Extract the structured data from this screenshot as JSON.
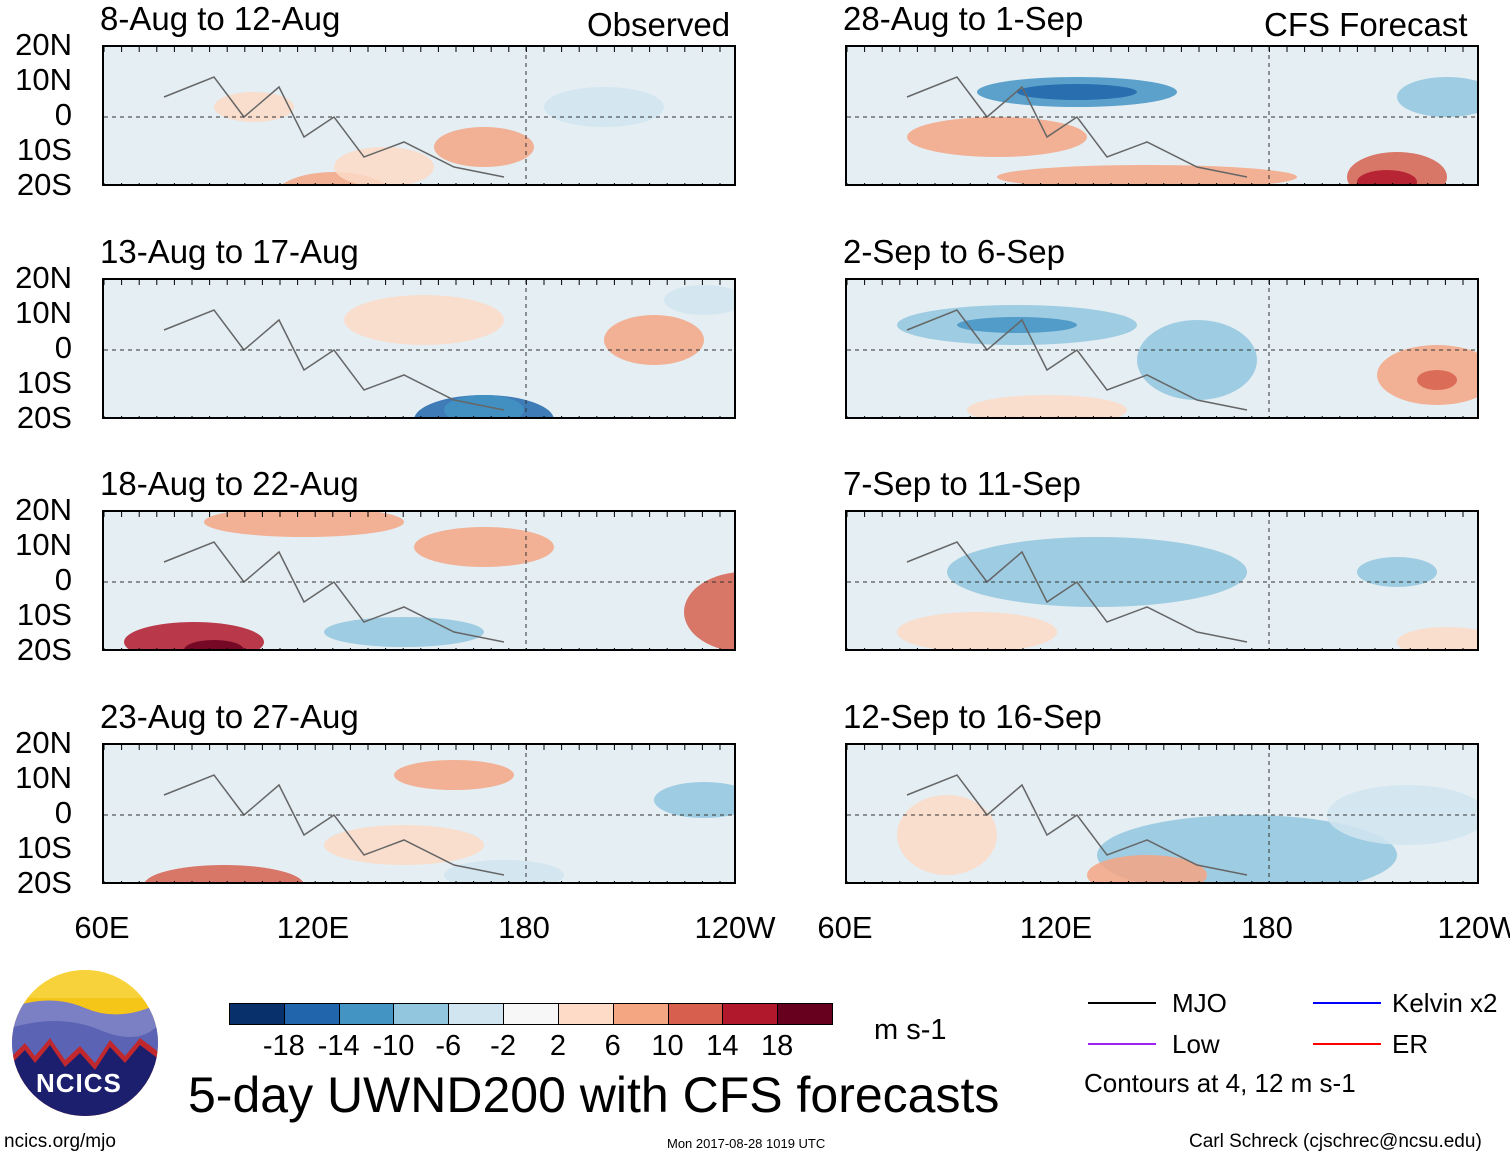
{
  "columns": {
    "left_tag": "Observed",
    "right_tag": "CFS Forecast"
  },
  "panels": [
    {
      "title": "8-Aug to 12-Aug"
    },
    {
      "title": "13-Aug to 17-Aug"
    },
    {
      "title": "18-Aug to 22-Aug"
    },
    {
      "title": "23-Aug to 27-Aug"
    },
    {
      "title": "28-Aug to 1-Sep"
    },
    {
      "title": "2-Sep to 6-Sep"
    },
    {
      "title": "7-Sep to 11-Sep"
    },
    {
      "title": "12-Sep to 16-Sep"
    }
  ],
  "y_ticks": [
    "20N",
    "10N",
    "0",
    "10S",
    "20S"
  ],
  "x_ticks": [
    "60E",
    "120E",
    "180",
    "120W"
  ],
  "colorbar": {
    "colors": [
      "#08306b",
      "#2166ac",
      "#4393c3",
      "#92c5de",
      "#d1e5f0",
      "#f7f7f7",
      "#fddbc7",
      "#f4a582",
      "#d6604d",
      "#b2182b",
      "#67001f"
    ],
    "labels": [
      "-18",
      "-14",
      "-10",
      "-6",
      "-2",
      "2",
      "6",
      "10",
      "14",
      "18"
    ],
    "units": "m s-1"
  },
  "legend": {
    "items": [
      {
        "label": "MJO",
        "color": "#000000"
      },
      {
        "label": "Kelvin x2",
        "color": "#0000ff"
      },
      {
        "label": "Low",
        "color": "#a020f0"
      },
      {
        "label": "ER",
        "color": "#ff0000"
      }
    ],
    "note": "Contours at 4, 12 m s-1"
  },
  "title": "5-day UWND200 with CFS forecasts",
  "logo_text": "NCICS",
  "footer": {
    "url": "ncics.org/mjo",
    "timestamp": "Mon 2017-08-28 1019 UTC",
    "credit": "Carl Schreck (cjschrec@ncsu.edu)"
  }
}
